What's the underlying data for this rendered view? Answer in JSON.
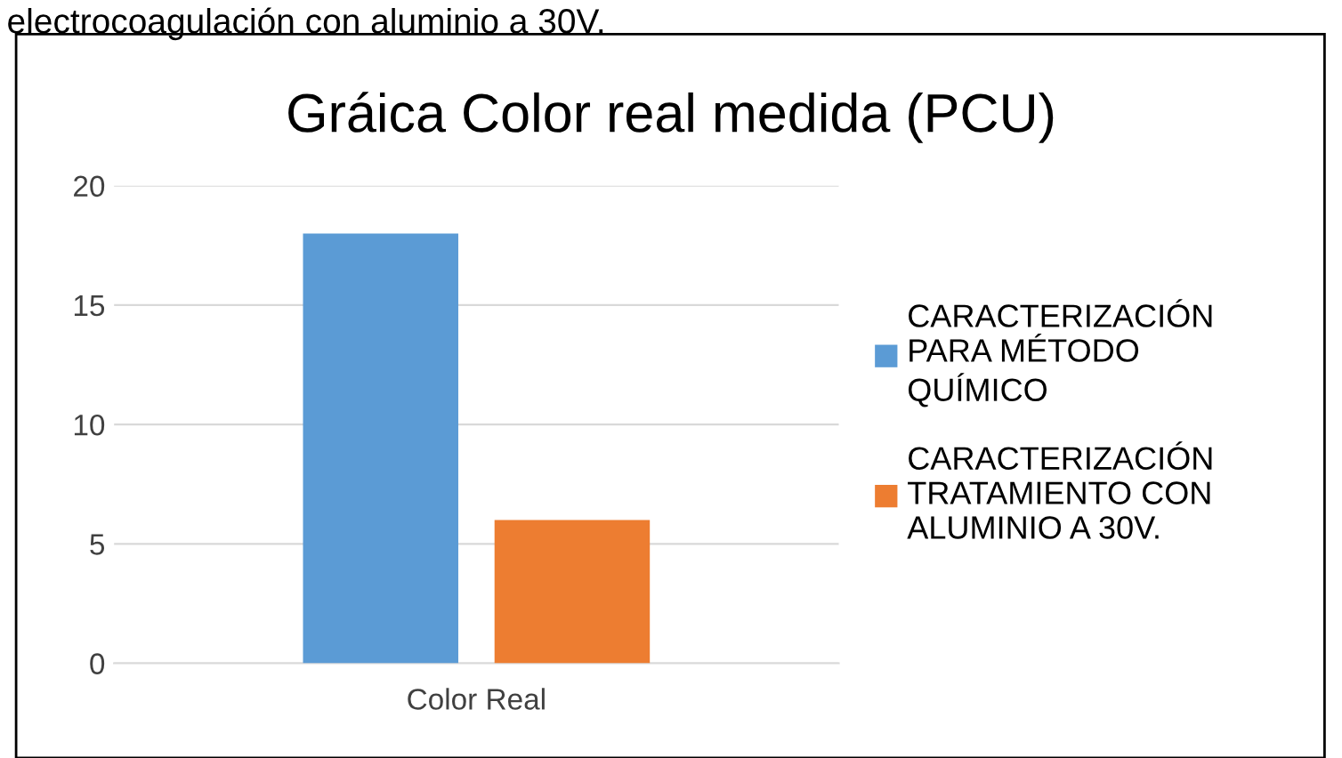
{
  "chart_data": {
    "type": "bar",
    "title": "Gráica Color real medida (PCU)",
    "annotations": [
      "electrocoagulación con aluminio a 30V."
    ],
    "categories": [
      "Color Real"
    ],
    "series": [
      {
        "name": "CARACTERIZACIÓN\nPARA MÉTODO\nQUÍMICO",
        "color": "#5b9bd5",
        "values": [
          18
        ]
      },
      {
        "name": "CARACTERIZACIÓN\nTRATAMIENTO CON\nALUMINIO A 30V.",
        "color": "#ed7d31",
        "values": [
          6
        ]
      }
    ],
    "ylim": [
      0,
      20
    ],
    "yticks": [
      0,
      5,
      10,
      15,
      20
    ],
    "grid": "y",
    "legend": "right"
  }
}
